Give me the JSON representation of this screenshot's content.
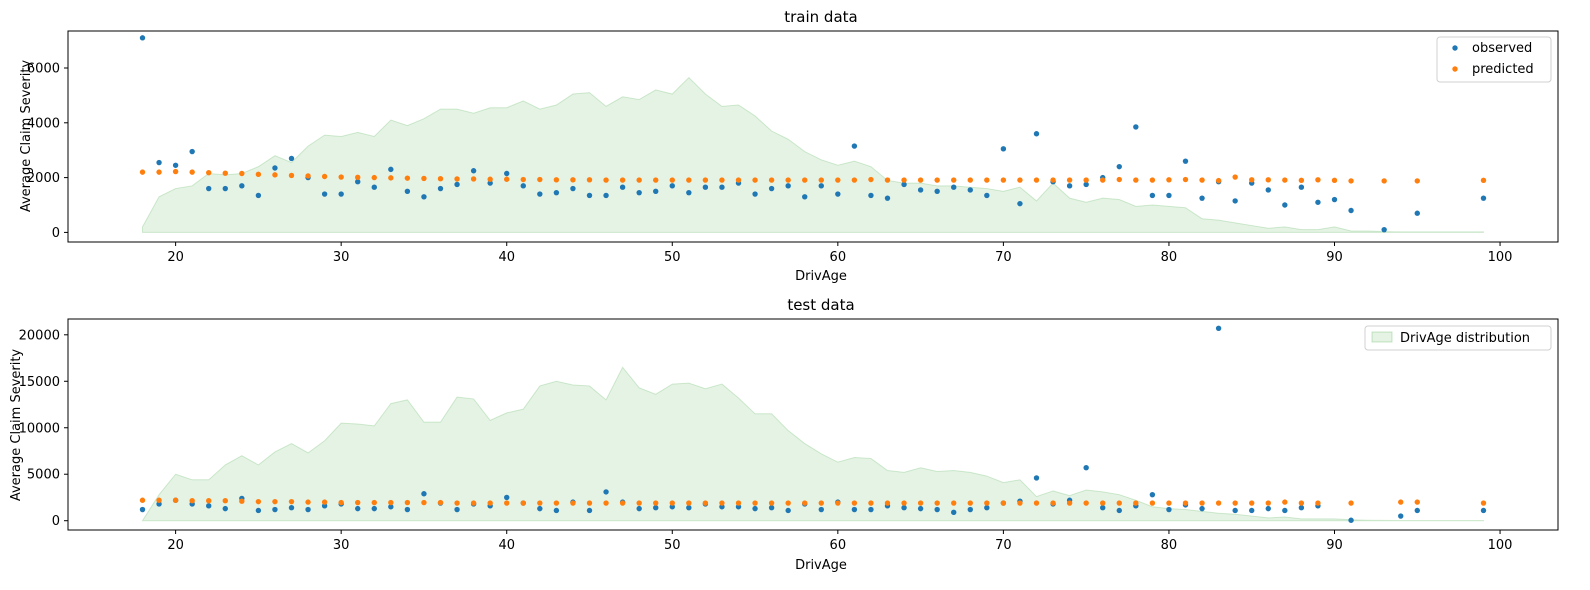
{
  "chart_data": [
    {
      "type": "scatter",
      "title": "train data",
      "xlabel": "DrivAge",
      "ylabel": "Average Claim Severity",
      "xlim": [
        13.5,
        103.5
      ],
      "ylim": [
        -350,
        7350
      ],
      "xticks": [
        20,
        30,
        40,
        50,
        60,
        70,
        80,
        90,
        100
      ],
      "yticks": [
        0,
        2000,
        4000,
        6000
      ],
      "legend": {
        "placement": "top-right",
        "entries": [
          "observed",
          "predicted"
        ]
      },
      "colors": {
        "observed": "#1f77b4",
        "predicted": "#ff7f0e",
        "distribution_fill": "#2ca02c"
      },
      "distribution": {
        "name": "DrivAge distribution",
        "x": [
          18,
          19,
          20,
          21,
          22,
          23,
          24,
          25,
          26,
          27,
          28,
          29,
          30,
          31,
          32,
          33,
          34,
          35,
          36,
          37,
          38,
          39,
          40,
          41,
          42,
          43,
          44,
          45,
          46,
          47,
          48,
          49,
          50,
          51,
          52,
          53,
          54,
          55,
          56,
          57,
          58,
          59,
          60,
          61,
          62,
          63,
          64,
          65,
          66,
          67,
          68,
          69,
          70,
          71,
          72,
          73,
          74,
          75,
          76,
          77,
          78,
          79,
          80,
          81,
          82,
          83,
          84,
          85,
          86,
          87,
          88,
          89,
          90,
          91,
          92,
          93,
          94,
          95,
          96,
          97,
          98,
          99
        ],
        "y": [
          200,
          1300,
          1600,
          1700,
          2150,
          2100,
          2150,
          2400,
          2800,
          2550,
          3150,
          3550,
          3500,
          3650,
          3500,
          4100,
          3900,
          4150,
          4500,
          4500,
          4350,
          4550,
          4550,
          4800,
          4500,
          4650,
          5050,
          5100,
          4600,
          4950,
          4850,
          5200,
          5050,
          5650,
          5050,
          4600,
          4650,
          4250,
          3700,
          3400,
          2950,
          2650,
          2450,
          2600,
          2400,
          1900,
          1800,
          1800,
          1700,
          1700,
          1650,
          1600,
          1500,
          1650,
          1150,
          1800,
          1250,
          1100,
          1250,
          1200,
          950,
          1000,
          950,
          900,
          500,
          450,
          350,
          250,
          150,
          200,
          100,
          100,
          200,
          50,
          50,
          30,
          20,
          20,
          20,
          20,
          20,
          20
        ]
      },
      "series": [
        {
          "name": "observed",
          "x": [
            18,
            19,
            20,
            21,
            22,
            23,
            24,
            25,
            26,
            27,
            28,
            29,
            30,
            31,
            32,
            33,
            34,
            35,
            36,
            37,
            38,
            39,
            40,
            41,
            42,
            43,
            44,
            45,
            46,
            47,
            48,
            49,
            50,
            51,
            52,
            53,
            54,
            55,
            56,
            57,
            58,
            59,
            60,
            61,
            62,
            63,
            64,
            65,
            66,
            67,
            68,
            69,
            70,
            71,
            72,
            73,
            74,
            75,
            76,
            77,
            78,
            79,
            80,
            81,
            82,
            83,
            84,
            85,
            86,
            87,
            88,
            89,
            90,
            91,
            93,
            95,
            99
          ],
          "y": [
            7100,
            2550,
            2450,
            2950,
            1600,
            1600,
            1700,
            1350,
            2350,
            2700,
            2000,
            1400,
            1400,
            1850,
            1650,
            2300,
            1500,
            1300,
            1600,
            1750,
            2250,
            1800,
            2150,
            1700,
            1400,
            1450,
            1600,
            1350,
            1350,
            1650,
            1450,
            1500,
            1700,
            1450,
            1650,
            1650,
            1800,
            1400,
            1600,
            1700,
            1300,
            1700,
            1400,
            3150,
            1350,
            1250,
            1750,
            1550,
            1500,
            1650,
            1550,
            1350,
            3050,
            1050,
            3600,
            1850,
            1700,
            1750,
            2000,
            2400,
            3850,
            1350,
            1350,
            2600,
            1250,
            1850,
            1150,
            1800,
            1550,
            1000,
            1650,
            1100,
            1200,
            800,
            100,
            700,
            1250
          ]
        },
        {
          "name": "predicted",
          "x": [
            18,
            19,
            20,
            21,
            22,
            23,
            24,
            25,
            26,
            27,
            28,
            29,
            30,
            31,
            32,
            33,
            34,
            35,
            36,
            37,
            38,
            39,
            40,
            41,
            42,
            43,
            44,
            45,
            46,
            47,
            48,
            49,
            50,
            51,
            52,
            53,
            54,
            55,
            56,
            57,
            58,
            59,
            60,
            61,
            62,
            63,
            64,
            65,
            66,
            67,
            68,
            69,
            70,
            71,
            72,
            73,
            74,
            75,
            76,
            77,
            78,
            79,
            80,
            81,
            82,
            83,
            84,
            85,
            86,
            87,
            88,
            89,
            90,
            91,
            93,
            95,
            99
          ],
          "y": [
            2200,
            2200,
            2220,
            2200,
            2180,
            2160,
            2150,
            2120,
            2100,
            2080,
            2060,
            2040,
            2020,
            2010,
            2000,
            1990,
            1980,
            1970,
            1960,
            1950,
            1950,
            1940,
            1940,
            1930,
            1930,
            1920,
            1920,
            1920,
            1910,
            1910,
            1910,
            1910,
            1910,
            1910,
            1910,
            1910,
            1910,
            1910,
            1910,
            1910,
            1910,
            1910,
            1910,
            1910,
            1930,
            1910,
            1910,
            1910,
            1910,
            1910,
            1910,
            1910,
            1910,
            1910,
            1910,
            1910,
            1910,
            1910,
            1910,
            1930,
            1910,
            1910,
            1920,
            1930,
            1910,
            1890,
            2020,
            1920,
            1920,
            1910,
            1900,
            1920,
            1900,
            1880,
            1880,
            1880,
            1900
          ]
        }
      ]
    },
    {
      "type": "scatter",
      "title": "test data",
      "xlabel": "DrivAge",
      "ylabel": "Average Claim Severity",
      "xlim": [
        13.5,
        103.5
      ],
      "ylim": [
        -1000,
        21700
      ],
      "xticks": [
        20,
        30,
        40,
        50,
        60,
        70,
        80,
        90,
        100
      ],
      "yticks": [
        0,
        5000,
        10000,
        15000,
        20000
      ],
      "legend": {
        "placement": "top-right",
        "entries": [
          "DrivAge distribution"
        ]
      },
      "colors": {
        "observed": "#1f77b4",
        "predicted": "#ff7f0e",
        "distribution_fill": "#2ca02c"
      },
      "distribution": {
        "name": "DrivAge distribution",
        "x": [
          18,
          19,
          20,
          21,
          22,
          23,
          24,
          25,
          26,
          27,
          28,
          29,
          30,
          31,
          32,
          33,
          34,
          35,
          36,
          37,
          38,
          39,
          40,
          41,
          42,
          43,
          44,
          45,
          46,
          47,
          48,
          49,
          50,
          51,
          52,
          53,
          54,
          55,
          56,
          57,
          58,
          59,
          60,
          61,
          62,
          63,
          64,
          65,
          66,
          67,
          68,
          69,
          70,
          71,
          72,
          73,
          74,
          75,
          76,
          77,
          78,
          79,
          80,
          81,
          82,
          83,
          84,
          85,
          86,
          87,
          88,
          89,
          90,
          91,
          92,
          93,
          94,
          95,
          96,
          97,
          98,
          99
        ],
        "y": [
          0,
          2800,
          5000,
          4400,
          4400,
          6000,
          7000,
          6000,
          7400,
          8300,
          7300,
          8600,
          10500,
          10400,
          10200,
          12600,
          13000,
          10600,
          10600,
          13300,
          13100,
          10800,
          11600,
          12000,
          14500,
          15000,
          14600,
          14500,
          13000,
          16500,
          14300,
          13600,
          14700,
          14800,
          14200,
          14700,
          13200,
          11500,
          11500,
          9700,
          8300,
          7200,
          6300,
          6800,
          6700,
          5400,
          5200,
          5700,
          5300,
          5400,
          5200,
          4800,
          4100,
          4400,
          2600,
          3200,
          2700,
          3300,
          3100,
          2800,
          2200,
          1500,
          1300,
          1200,
          1000,
          800,
          700,
          500,
          300,
          400,
          200,
          200,
          200,
          100,
          50,
          30,
          20,
          20,
          20,
          20,
          20,
          20
        ]
      },
      "series": [
        {
          "name": "observed",
          "x": [
            18,
            19,
            20,
            21,
            22,
            23,
            24,
            25,
            26,
            27,
            28,
            29,
            30,
            31,
            32,
            33,
            34,
            35,
            36,
            37,
            38,
            39,
            40,
            41,
            42,
            43,
            44,
            45,
            46,
            47,
            48,
            49,
            50,
            51,
            52,
            53,
            54,
            55,
            56,
            57,
            58,
            59,
            60,
            61,
            62,
            63,
            64,
            65,
            66,
            67,
            68,
            69,
            70,
            71,
            72,
            73,
            74,
            75,
            76,
            77,
            78,
            79,
            80,
            81,
            82,
            83,
            84,
            85,
            86,
            87,
            88,
            89,
            91,
            94,
            95,
            99
          ],
          "y": [
            1200,
            1800,
            2200,
            1800,
            1600,
            1300,
            2400,
            1100,
            1200,
            1400,
            1200,
            1600,
            1800,
            1300,
            1300,
            1500,
            1200,
            2900,
            1900,
            1200,
            1800,
            1600,
            2500,
            1900,
            1300,
            1100,
            2000,
            1100,
            3100,
            2000,
            1300,
            1400,
            1500,
            1400,
            1800,
            1500,
            1500,
            1300,
            1400,
            1100,
            1800,
            1200,
            2000,
            1200,
            1200,
            1600,
            1400,
            1300,
            1200,
            900,
            1200,
            1400,
            1900,
            2100,
            4600,
            1800,
            2200,
            5700,
            1400,
            1100,
            1600,
            2800,
            1200,
            1700,
            1300,
            20700,
            1100,
            1100,
            1300,
            1100,
            1400,
            1600,
            50,
            500,
            1100,
            1100
          ]
        },
        {
          "name": "predicted",
          "x": [
            18,
            19,
            20,
            21,
            22,
            23,
            24,
            25,
            26,
            27,
            28,
            29,
            30,
            31,
            32,
            33,
            34,
            35,
            36,
            37,
            38,
            39,
            40,
            41,
            42,
            43,
            44,
            45,
            46,
            47,
            48,
            49,
            50,
            51,
            52,
            53,
            54,
            55,
            56,
            57,
            58,
            59,
            60,
            61,
            62,
            63,
            64,
            65,
            66,
            67,
            68,
            69,
            70,
            71,
            72,
            73,
            74,
            75,
            76,
            77,
            78,
            79,
            80,
            81,
            82,
            83,
            84,
            85,
            86,
            87,
            88,
            89,
            91,
            94,
            95,
            99
          ],
          "y": [
            2200,
            2200,
            2200,
            2150,
            2150,
            2150,
            2100,
            2050,
            2050,
            2050,
            2000,
            2000,
            1950,
            1950,
            1950,
            1950,
            1950,
            1950,
            1950,
            1900,
            1900,
            1900,
            1900,
            1900,
            1900,
            1900,
            1900,
            1900,
            1900,
            1900,
            1900,
            1900,
            1900,
            1900,
            1900,
            1900,
            1900,
            1900,
            1900,
            1900,
            1900,
            1900,
            1900,
            1900,
            1900,
            1900,
            1900,
            1900,
            1900,
            1900,
            1900,
            1900,
            1900,
            1900,
            1900,
            1900,
            1900,
            1900,
            1900,
            1900,
            1900,
            1900,
            1900,
            1900,
            1900,
            1900,
            1900,
            1900,
            1900,
            2000,
            1900,
            1900,
            1900,
            2000,
            2000,
            1900
          ]
        }
      ]
    }
  ]
}
